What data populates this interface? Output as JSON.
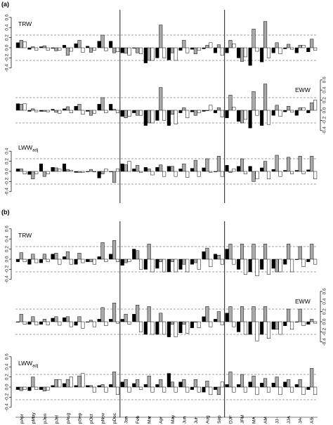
{
  "chart_data": {
    "type": "bar",
    "categories": [
      "pApr",
      "pMay",
      "pJun",
      "pJul",
      "pAug",
      "pSep",
      "pOct",
      "pNov",
      "pDec",
      "Jan",
      "Feb",
      "Mar",
      "Apr",
      "May",
      "Jun",
      "Jul",
      "Aug",
      "Sep",
      "DJF",
      "JFM",
      "MA",
      "AM",
      "JJ",
      "JJA",
      "JA",
      "AS"
    ],
    "x_tick_labels": [
      "pApr",
      "pMay",
      "pJun",
      "pJul",
      "pAug",
      "pSep",
      "pOct",
      "pNov",
      "pDec",
      "Jan",
      "Feb",
      "Mar",
      "Apr",
      "May",
      "Jun",
      "Jul",
      "Aug",
      "Sep",
      "DJF",
      "JFM",
      "MA",
      "AM",
      "JJ",
      "JJA",
      "JA",
      "AS"
    ],
    "series_colors": [
      "#000000",
      "#a9a9a9",
      "#ffffff"
    ],
    "threshold_lines": [
      0.25,
      -0.25
    ],
    "separators_after_index": [
      8,
      17
    ],
    "panels": [
      {
        "label": "(a)",
        "subplots": [
          {
            "name": "TRW",
            "name_sub": "",
            "axis_side": "left",
            "ylim": [
              -0.4,
              0.6
            ],
            "yticks": [
              "-0.4",
              "-0.2",
              "0.0",
              "0.2",
              "0.4",
              "0.6"
            ],
            "series": [
              {
                "values": [
                  0.1,
                  -0.03,
                  0.02,
                  -0.01,
                  0.05,
                  0.08,
                  0.03,
                  0.13,
                  0.13,
                  -0.1,
                  0.0,
                  -0.3,
                  -0.2,
                  -0.24,
                  -0.05,
                  -0.03,
                  -0.02,
                  -0.1,
                  -0.1,
                  -0.2,
                  -0.35,
                  -0.28,
                  -0.1,
                  -0.02,
                  -0.1,
                  -0.08
                ]
              },
              {
                "values": [
                  0.15,
                  0.02,
                  0.04,
                  -0.06,
                  -0.15,
                  0.15,
                  -0.09,
                  0.25,
                  -0.1,
                  -0.11,
                  -0.1,
                  -0.25,
                  0.45,
                  -0.1,
                  0.15,
                  -0.12,
                  0.05,
                  0.06,
                  0.15,
                  -0.27,
                  0.37,
                  0.52,
                  0.1,
                  0.07,
                  0.05,
                  0.17
                ]
              },
              {
                "values": [
                  0.12,
                  -0.05,
                  -0.05,
                  -0.05,
                  -0.07,
                  -0.09,
                  -0.05,
                  -0.06,
                  -0.08,
                  -0.15,
                  -0.12,
                  -0.25,
                  -0.2,
                  -0.25,
                  -0.1,
                  -0.05,
                  0.1,
                  -0.15,
                  0.08,
                  -0.18,
                  -0.07,
                  -0.2,
                  -0.12,
                  -0.03,
                  0.05,
                  -0.05
                ]
              }
            ]
          },
          {
            "name": "EWW",
            "name_sub": "",
            "axis_side": "right",
            "ylim": [
              -0.4,
              0.6
            ],
            "yticks": [
              "-0.4",
              "-0.2",
              "0.0",
              "0.2",
              "0.4",
              "0.6"
            ],
            "series": [
              {
                "values": [
                  0.13,
                  -0.02,
                  -0.02,
                  0.02,
                  0.03,
                  0.08,
                  -0.02,
                  0.12,
                  0.12,
                  -0.12,
                  -0.05,
                  -0.3,
                  -0.2,
                  -0.3,
                  -0.05,
                  -0.03,
                  -0.02,
                  -0.05,
                  -0.15,
                  -0.22,
                  -0.35,
                  -0.3,
                  -0.1,
                  -0.03,
                  -0.1,
                  -0.05
                ]
              },
              {
                "values": [
                  0.12,
                  0.03,
                  -0.02,
                  -0.04,
                  0.07,
                  0.12,
                  -0.1,
                  0.25,
                  0.02,
                  -0.15,
                  -0.1,
                  -0.25,
                  0.45,
                  -0.08,
                  0.05,
                  -0.1,
                  0.0,
                  0.05,
                  0.3,
                  -0.25,
                  0.37,
                  0.52,
                  0.1,
                  0.08,
                  0.05,
                  0.15
                ]
              },
              {
                "values": [
                  0.13,
                  -0.03,
                  -0.03,
                  -0.06,
                  -0.05,
                  -0.08,
                  -0.06,
                  -0.05,
                  -0.05,
                  -0.12,
                  -0.1,
                  -0.25,
                  -0.2,
                  -0.27,
                  -0.15,
                  -0.05,
                  0.1,
                  -0.13,
                  0.06,
                  -0.18,
                  -0.1,
                  -0.28,
                  -0.12,
                  -0.04,
                  0.05,
                  0.2
                ]
              }
            ]
          },
          {
            "name": "LWW",
            "name_sub": "adj",
            "axis_side": "left",
            "ylim": [
              -0.4,
              0.6
            ],
            "yticks": [
              "-0.4",
              "-0.2",
              "0.0",
              "0.2",
              "0.4"
            ],
            "series": [
              {
                "values": [
                  0.05,
                  -0.06,
                  0.15,
                  0.08,
                  0.15,
                  -0.02,
                  0.0,
                  -0.13,
                  0.0,
                  0.15,
                  0.05,
                  0.08,
                  0.08,
                  0.1,
                  0.05,
                  0.06,
                  0.07,
                  0.0,
                  0.12,
                  0.1,
                  0.1,
                  0.07,
                  0.04,
                  0.02,
                  0.02,
                  0.03
                ]
              },
              {
                "values": [
                  0.05,
                  -0.15,
                  -0.1,
                  0.07,
                  0.04,
                  -0.02,
                  0.04,
                  -0.05,
                  -0.22,
                  0.13,
                  0.12,
                  0.05,
                  0.13,
                  0.1,
                  0.15,
                  0.22,
                  0.25,
                  0.3,
                  -0.02,
                  0.25,
                  -0.2,
                  0.2,
                  0.32,
                  0.28,
                  0.3,
                  0.3
                ]
              },
              {
                "values": [
                  -0.05,
                  -0.05,
                  -0.05,
                  0.05,
                  0.02,
                  -0.02,
                  0.0,
                  0.05,
                  0.05,
                  0.2,
                  -0.02,
                  -0.07,
                  -0.1,
                  -0.1,
                  -0.12,
                  -0.1,
                  -0.02,
                  -0.1,
                  0.05,
                  -0.05,
                  -0.15,
                  -0.15,
                  -0.1,
                  -0.05,
                  -0.05,
                  -0.15
                ]
              }
            ]
          }
        ]
      },
      {
        "label": "(b)",
        "subplots": [
          {
            "name": "TRW",
            "name_sub": "",
            "axis_side": "left",
            "ylim": [
              -0.4,
              0.6
            ],
            "yticks": [
              "-0.4",
              "-0.2",
              "0.0",
              "0.2",
              "0.4",
              "0.6"
            ],
            "series": [
              {
                "values": [
                  -0.05,
                  -0.1,
                  -0.07,
                  0.1,
                  0.05,
                  -0.1,
                  -0.05,
                  0.05,
                  0.1,
                  -0.12,
                  0.2,
                  -0.2,
                  -0.18,
                  -0.25,
                  -0.2,
                  -0.1,
                  0.15,
                  0.1,
                  0.2,
                  -0.2,
                  -0.25,
                  -0.2,
                  -0.18,
                  -0.1,
                  0.0,
                  -0.05
                ]
              },
              {
                "values": [
                  0.13,
                  0.1,
                  0.1,
                  0.12,
                  0.15,
                  0.12,
                  -0.05,
                  0.33,
                  0.37,
                  -0.07,
                  0.17,
                  0.3,
                  -0.05,
                  -0.05,
                  -0.1,
                  -0.07,
                  0.22,
                  0.08,
                  0.3,
                  0.3,
                  0.3,
                  0.3,
                  -0.25,
                  0.3,
                  0.25,
                  0.3
                ]
              },
              {
                "values": [
                  -0.05,
                  -0.07,
                  -0.05,
                  -0.1,
                  -0.1,
                  -0.07,
                  -0.1,
                  -0.05,
                  -0.05,
                  -0.05,
                  -0.2,
                  -0.25,
                  -0.25,
                  -0.25,
                  -0.25,
                  -0.2,
                  -0.15,
                  -0.1,
                  -0.1,
                  -0.3,
                  -0.33,
                  -0.3,
                  -0.25,
                  -0.25,
                  -0.15,
                  -0.1
                ]
              }
            ]
          },
          {
            "name": "EWW",
            "name_sub": "",
            "axis_side": "right",
            "ylim": [
              -0.4,
              0.6
            ],
            "yticks": [
              "-0.4",
              "-0.2",
              "0.0",
              "0.2",
              "0.4",
              "0.6"
            ],
            "series": [
              {
                "values": [
                  0.0,
                  -0.05,
                  -0.05,
                  0.07,
                  0.08,
                  -0.07,
                  0.0,
                  0.05,
                  0.05,
                  0.05,
                  0.15,
                  -0.25,
                  -0.25,
                  -0.3,
                  -0.22,
                  -0.12,
                  0.1,
                  0.05,
                  0.17,
                  -0.2,
                  -0.25,
                  -0.25,
                  -0.15,
                  -0.08,
                  0.0,
                  -0.05
                ]
              },
              {
                "values": [
                  0.15,
                  0.1,
                  0.05,
                  0.1,
                  0.1,
                  0.1,
                  0.03,
                  0.28,
                  0.37,
                  0.15,
                  0.33,
                  0.3,
                  0.17,
                  -0.05,
                  -0.05,
                  0.0,
                  0.3,
                  0.2,
                  0.3,
                  0.3,
                  0.3,
                  0.3,
                  -0.15,
                  0.25,
                  0.25,
                  0.05
                ]
              },
              {
                "values": [
                  -0.05,
                  -0.06,
                  -0.06,
                  -0.07,
                  -0.1,
                  -0.13,
                  -0.1,
                  -0.08,
                  -0.03,
                  -0.05,
                  -0.2,
                  -0.25,
                  -0.25,
                  -0.3,
                  -0.23,
                  -0.12,
                  -0.1,
                  -0.06,
                  -0.1,
                  -0.25,
                  -0.38,
                  -0.33,
                  -0.25,
                  -0.15,
                  -0.08,
                  -0.03
                ]
              }
            ]
          },
          {
            "name": "LWW",
            "name_sub": "adj",
            "axis_side": "left",
            "ylim": [
              -0.4,
              0.6
            ],
            "yticks": [
              "-0.4",
              "-0.2",
              "0.0",
              "0.2",
              "0.4",
              "0.6"
            ],
            "series": [
              {
                "values": [
                  -0.05,
                  -0.07,
                  -0.05,
                  0.03,
                  0.07,
                  0.03,
                  0.03,
                  0.03,
                  0.05,
                  0.1,
                  0.07,
                  0.05,
                  0.05,
                  0.27,
                  0.1,
                  -0.05,
                  -0.1,
                  -0.05,
                  0.05,
                  0.05,
                  0.1,
                  0.08,
                  0.08,
                  0.1,
                  0.05,
                  -0.05
                ]
              },
              {
                "values": [
                  -0.07,
                  0.2,
                  -0.08,
                  0.15,
                  0.15,
                  0.22,
                  0.03,
                  0.05,
                  0.3,
                  0.15,
                  0.15,
                  0.22,
                  0.15,
                  0.1,
                  0.15,
                  0.15,
                  0.12,
                  -0.15,
                  0.3,
                  0.25,
                  0.22,
                  0.17,
                  0.2,
                  0.15,
                  0.15,
                  0.37
                ]
              },
              {
                "values": [
                  -0.05,
                  -0.05,
                  -0.06,
                  0.15,
                  0.2,
                  0.27,
                  -0.1,
                  -0.1,
                  -0.15,
                  -0.1,
                  -0.05,
                  -0.1,
                  -0.1,
                  -0.1,
                  -0.1,
                  -0.1,
                  -0.15,
                  0.1,
                  -0.1,
                  -0.1,
                  -0.15,
                  -0.1,
                  -0.15,
                  -0.1,
                  -0.15,
                  -0.15
                ]
              }
            ]
          }
        ]
      }
    ]
  }
}
